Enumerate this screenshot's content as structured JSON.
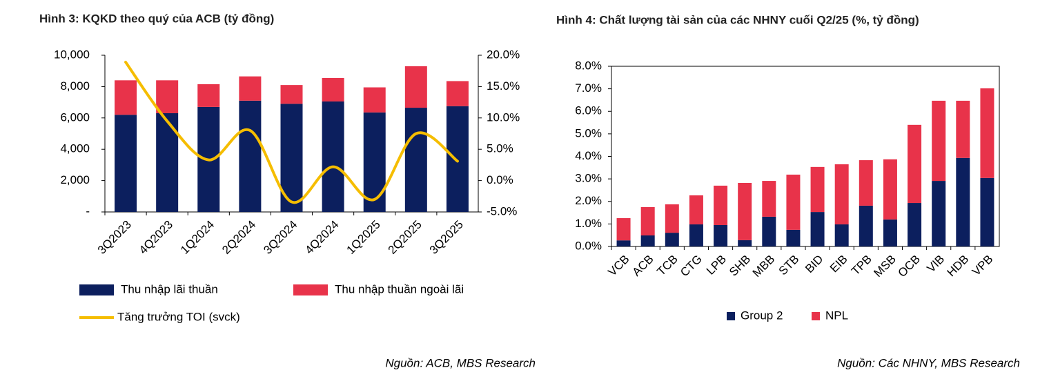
{
  "chart_data": [
    {
      "type": "bar",
      "stacked": true,
      "title": "Hình 3: KQKD theo quý của ACB (tỷ đồng)",
      "source": "Nguồn: ACB, MBS Research",
      "categories": [
        "3Q2023",
        "4Q2023",
        "1Q2024",
        "2Q2024",
        "3Q2024",
        "4Q2024",
        "1Q2025",
        "2Q2025",
        "3Q2025"
      ],
      "series": [
        {
          "name": "Thu nhập lãi thuần",
          "color": "#0c1f5e",
          "values": [
            6200,
            6300,
            6700,
            7100,
            6900,
            7050,
            6350,
            6650,
            6750
          ]
        },
        {
          "name": "Thu nhập thuần ngoài lãi",
          "color": "#e8334a",
          "values": [
            2200,
            2100,
            1450,
            1550,
            1200,
            1500,
            1600,
            2650,
            1600
          ]
        },
        {
          "name": "Tăng trưởng TOI (svck)",
          "color": "#f5bd00",
          "type": "line",
          "axis": "y2",
          "values": [
            18.9,
            9.5,
            3.3,
            8.0,
            -3.4,
            2.2,
            -3.0,
            7.5,
            3.1
          ]
        }
      ],
      "ylim": [
        0,
        10000
      ],
      "yticks": [
        {
          "value": 0,
          "label": "-"
        },
        {
          "value": 2000,
          "label": "2,000"
        },
        {
          "value": 4000,
          "label": "4,000"
        },
        {
          "value": 6000,
          "label": "6,000"
        },
        {
          "value": 8000,
          "label": "8,000"
        },
        {
          "value": 10000,
          "label": "10,000"
        }
      ],
      "y2lim": [
        -5,
        20
      ],
      "y2ticks": [
        {
          "value": -5,
          "label": "-5.0%"
        },
        {
          "value": 0,
          "label": "0.0%"
        },
        {
          "value": 5,
          "label": "5.0%"
        },
        {
          "value": 10,
          "label": "10.0%"
        },
        {
          "value": 15,
          "label": "15.0%"
        },
        {
          "value": 20,
          "label": "20.0%"
        }
      ],
      "grid": false
    },
    {
      "type": "bar",
      "stacked": true,
      "title": "Hình 4: Chất lượng tài sản của các NHNY cuối Q2/25 (%, tỷ đồng)",
      "source": "Nguồn: Các NHNY, MBS Research",
      "categories": [
        "VCB",
        "ACB",
        "TCB",
        "CTG",
        "LPB",
        "SHB",
        "MBB",
        "STB",
        "BID",
        "EIB",
        "TPB",
        "MSB",
        "OCB",
        "VIB",
        "HDB",
        "VPB"
      ],
      "series": [
        {
          "name": "Group 2",
          "color": "#0c1f5e",
          "values": [
            0.27,
            0.49,
            0.61,
            0.98,
            0.95,
            0.28,
            1.32,
            0.74,
            1.53,
            0.98,
            1.81,
            1.2,
            1.93,
            2.91,
            3.93,
            3.04
          ]
        },
        {
          "name": "NPL",
          "color": "#e8334a",
          "values": [
            0.99,
            1.26,
            1.26,
            1.29,
            1.75,
            2.54,
            1.59,
            2.45,
            2.0,
            2.67,
            2.02,
            2.67,
            3.47,
            3.56,
            2.54,
            3.98
          ]
        }
      ],
      "ylim": [
        0,
        8
      ],
      "yticks": [
        {
          "value": 0,
          "label": "0.0%"
        },
        {
          "value": 1,
          "label": "1.0%"
        },
        {
          "value": 2,
          "label": "2.0%"
        },
        {
          "value": 3,
          "label": "3.0%"
        },
        {
          "value": 4,
          "label": "4.0%"
        },
        {
          "value": 5,
          "label": "5.0%"
        },
        {
          "value": 6,
          "label": "6.0%"
        },
        {
          "value": 7,
          "label": "7.0%"
        },
        {
          "value": 8,
          "label": "8.0%"
        }
      ],
      "grid": false
    }
  ]
}
